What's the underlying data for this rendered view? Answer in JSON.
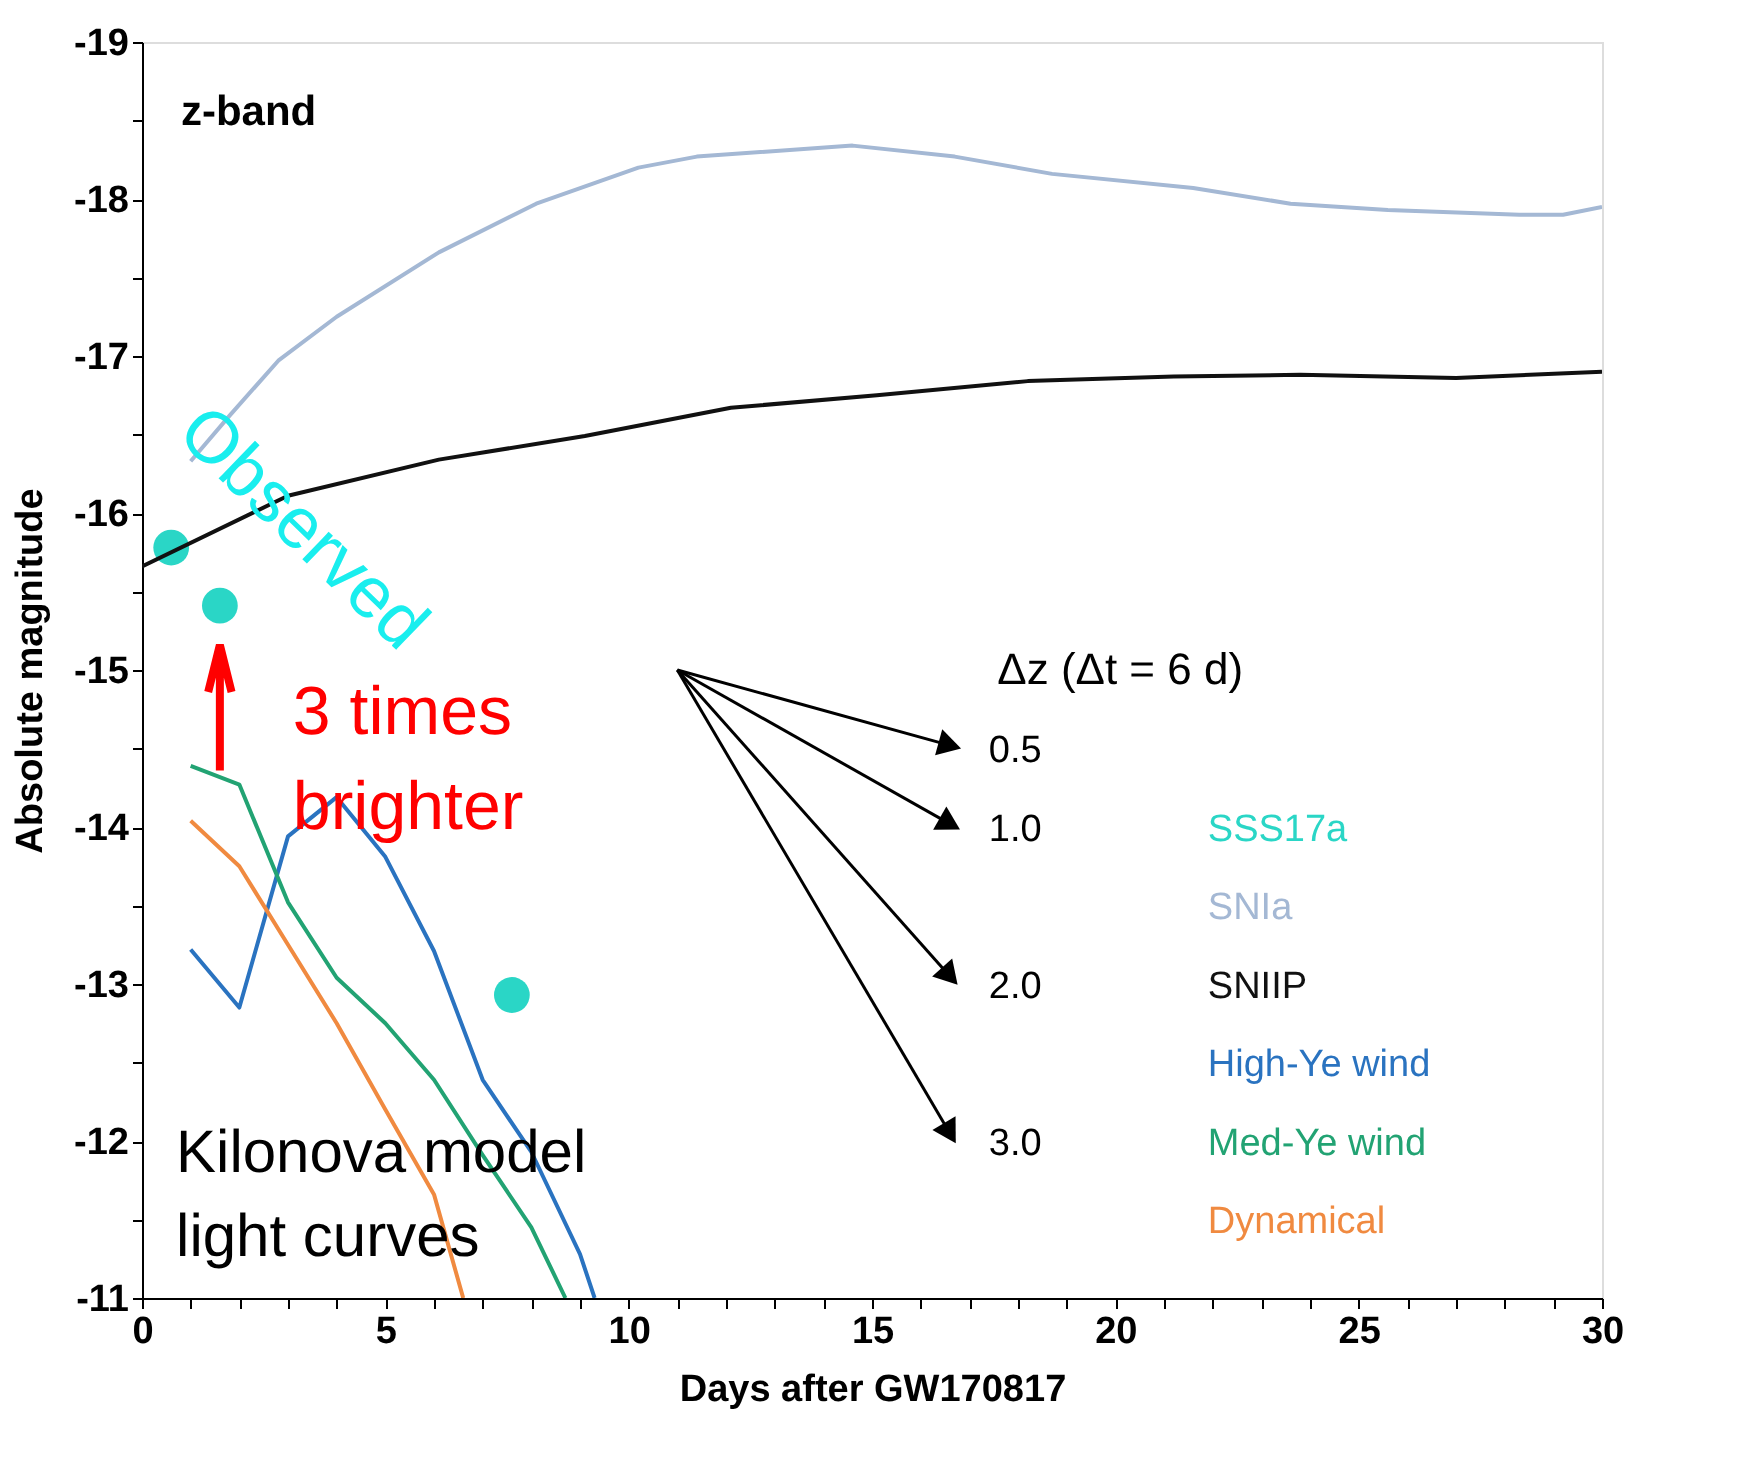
{
  "chart_data": {
    "type": "line",
    "xlabel": "Days after GW170817",
    "ylabel": "Absolute magnitude",
    "xlim": [
      0,
      30
    ],
    "ylim": [
      -11,
      -19
    ],
    "xticks": [
      0,
      {
        "value": 1,
        "label": null
      },
      {
        "value": 2,
        "label": null
      },
      {
        "value": 3,
        "label": null
      },
      {
        "value": 4,
        "label": null
      },
      5,
      {
        "value": 6,
        "label": null
      },
      {
        "value": 7,
        "label": null
      },
      {
        "value": 8,
        "label": null
      },
      {
        "value": 9,
        "label": null
      },
      10,
      {
        "value": 11,
        "label": null
      },
      {
        "value": 12,
        "label": null
      },
      {
        "value": 13,
        "label": null
      },
      {
        "value": 14,
        "label": null
      },
      15,
      {
        "value": 16,
        "label": null
      },
      {
        "value": 17,
        "label": null
      },
      {
        "value": 18,
        "label": null
      },
      {
        "value": 19,
        "label": null
      },
      20,
      {
        "value": 21,
        "label": null
      },
      {
        "value": 22,
        "label": null
      },
      {
        "value": 23,
        "label": null
      },
      {
        "value": 24,
        "label": null
      },
      25,
      {
        "value": 26,
        "label": null
      },
      {
        "value": 27,
        "label": null
      },
      {
        "value": 28,
        "label": null
      },
      {
        "value": 29,
        "label": null
      },
      30
    ],
    "yticks": [
      -19,
      {
        "value": -18.5,
        "label": null
      },
      -18,
      {
        "value": -17.5,
        "label": null
      },
      -17,
      {
        "value": -16.5,
        "label": null
      },
      -16,
      {
        "value": -15.5,
        "label": null
      },
      -15,
      {
        "value": -14.5,
        "label": null
      },
      -14,
      {
        "value": -13.5,
        "label": null
      },
      -13,
      {
        "value": -12.5,
        "label": null
      },
      -12,
      {
        "value": -11.5,
        "label": null
      },
      -11
    ],
    "grid": false,
    "legend": "bottom right",
    "series": [
      {
        "name": "SSS17a",
        "type": "scatter",
        "marker": "circle",
        "color": "#2ad6c6",
        "x": [
          0.6,
          1.6,
          7.6
        ],
        "values": [
          -15.78,
          -15.41,
          -12.93
        ]
      },
      {
        "name": "SNIa",
        "color": "#a4b8d4",
        "x": [
          1.0,
          1.8,
          2.8,
          4.0,
          6.1,
          8.1,
          10.2,
          11.4,
          14.6,
          16.7,
          18.7,
          21.6,
          23.6,
          25.6,
          28.3,
          29.2,
          30
        ],
        "values": [
          -16.33,
          -16.62,
          -16.97,
          -17.25,
          -17.66,
          -17.97,
          -18.2,
          -18.27,
          -18.34,
          -18.27,
          -18.16,
          -18.07,
          -17.97,
          -17.93,
          -17.9,
          -17.9,
          -17.95
        ]
      },
      {
        "name": "SNIIP",
        "color": "#111111",
        "x": [
          0,
          3.0,
          6.1,
          9.1,
          12.1,
          15.1,
          18.2,
          21.2,
          23.8,
          27.0,
          30
        ],
        "values": [
          -15.66,
          -16.11,
          -16.34,
          -16.49,
          -16.67,
          -16.75,
          -16.84,
          -16.87,
          -16.88,
          -16.86,
          -16.9
        ]
      },
      {
        "name": "High-Ye wind",
        "color": "#2a73c0",
        "x": [
          1.0,
          2.0,
          3.0,
          4.0,
          5.0,
          6.0,
          7.0,
          8.0,
          9.0,
          9.3
        ],
        "values": [
          -13.22,
          -12.85,
          -13.94,
          -14.19,
          -13.81,
          -13.21,
          -12.39,
          -11.93,
          -11.28,
          -11.0
        ]
      },
      {
        "name": "Med-Ye wind",
        "color": "#22a373",
        "x": [
          1.0,
          2.0,
          3.0,
          4.0,
          5.0,
          6.0,
          7.0,
          8.0,
          8.7
        ],
        "values": [
          -14.39,
          -14.27,
          -13.52,
          -13.04,
          -12.75,
          -12.39,
          -11.91,
          -11.45,
          -11.0
        ]
      },
      {
        "name": "Dynamical",
        "color": "#f08a40",
        "x": [
          1.0,
          2.0,
          3.0,
          4.0,
          5.0,
          6.0,
          6.6
        ],
        "values": [
          -14.04,
          -13.75,
          -13.25,
          -12.75,
          -12.2,
          -11.66,
          -11.0
        ]
      }
    ],
    "annotations": [
      "z-band",
      "Observed",
      {
        "text": "3 times brighter",
        "x": 1.6,
        "y": -15.41
      },
      "Kilonova model light curves",
      "Δz (Δt = 6 d)",
      "0.5",
      "1.0",
      "2.0",
      "3.0"
    ]
  }
}
